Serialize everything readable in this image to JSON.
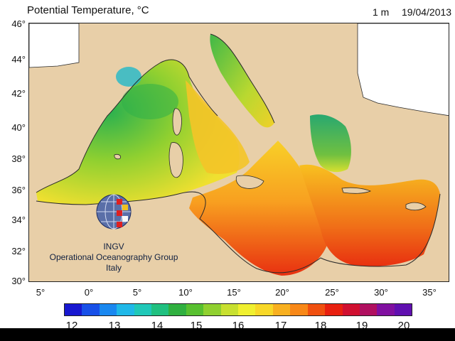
{
  "header": {
    "title": "Potential Temperature, °C",
    "depth": "1 m",
    "date": "19/04/2013"
  },
  "axes": {
    "lat_labels": [
      "46°",
      "44°",
      "42°",
      "40°",
      "38°",
      "36°",
      "34°",
      "32°",
      "30°"
    ],
    "lon_labels": [
      "5°",
      "0°",
      "5°",
      "10°",
      "15°",
      "20°",
      "25°",
      "30°",
      "35°"
    ]
  },
  "logo": {
    "line1": "INGV",
    "line2": "Operational Oceanography Group",
    "line3": "Italy"
  },
  "colorbar": {
    "labels": [
      "12",
      "13",
      "14",
      "15",
      "16",
      "17",
      "18",
      "19",
      "20"
    ],
    "colors": [
      "#1818d0",
      "#1850e8",
      "#1a88f0",
      "#20b8e8",
      "#20c8b8",
      "#20c080",
      "#30b040",
      "#58c030",
      "#90d030",
      "#c8e030",
      "#f0f030",
      "#f8d828",
      "#f8b020",
      "#f88818",
      "#f05010",
      "#e82010",
      "#d01030",
      "#b01060",
      "#8010a0",
      "#6010b0"
    ]
  },
  "colors": {
    "land": "#e8cfa8",
    "coast": "#2a2a2a"
  }
}
